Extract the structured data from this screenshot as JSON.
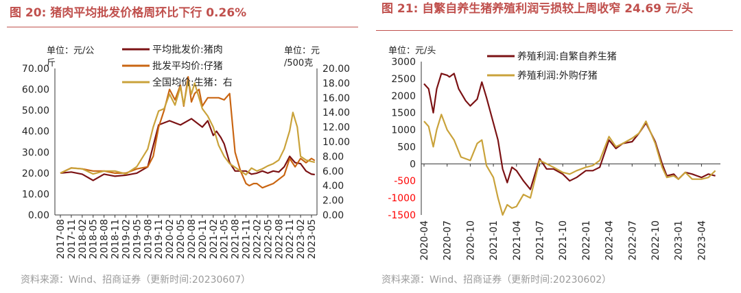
{
  "left_panel": {
    "title": "图 20: 猪肉平均批发价格周环比下行 0.26%",
    "source": "资料来源：Wind、招商证券（更新时间:20230607）"
  },
  "right_panel": {
    "title": "图 21: 自繁自养生猪养殖利润亏损较上周收窄 24.69 元/头",
    "source": "资料来源：Wind、招商证券（更新时间:20230602）"
  },
  "chart_data": [
    {
      "type": "line",
      "title": "图 20: 猪肉平均批发价格周环比下行 0.26%",
      "y_left_unit": "单位：元/公斤",
      "y_right_unit": "元/500克",
      "ylim_left": [
        0,
        70
      ],
      "ylim_right": [
        0,
        20
      ],
      "yticks_left": [
        "70.00",
        "60.00",
        "50.00",
        "40.00",
        "30.00",
        "20.00",
        "10.00",
        "0.00"
      ],
      "yticks_right": [
        "20.00",
        "18.00",
        "16.00",
        "14.00",
        "12.00",
        "10.00",
        "8.00",
        "6.00",
        "4.00",
        "2.00",
        "0.00"
      ],
      "x_tick_labels": [
        "2017-08",
        "2017-11",
        "2018-02",
        "2018-05",
        "2018-08",
        "2018-11",
        "2019-02",
        "2019-05",
        "2019-08",
        "2019-11",
        "2020-02",
        "2020-05",
        "2020-08",
        "2020-11",
        "2021-02",
        "2021-05",
        "2021-08",
        "2021-11",
        "2022-02",
        "2022-05",
        "2022-08",
        "2022-11",
        "2023-02",
        "2023-05"
      ],
      "legend_position": "top-center",
      "series": [
        {
          "name": "平均批发价:猪肉",
          "axis": "left",
          "color": "#7b1214",
          "x": [
            0,
            1,
            2,
            3,
            4,
            5,
            6,
            7,
            8,
            9,
            10,
            11,
            12,
            12.5,
            13,
            13.5,
            14,
            14.3,
            14.7,
            15,
            15.5,
            16,
            16.5,
            17,
            17.5,
            18,
            18.5,
            19,
            19.5,
            20,
            20.5,
            21,
            21.5,
            22,
            22.5,
            23,
            23.3
          ],
          "values": [
            20,
            20.5,
            19.5,
            16.5,
            19.5,
            18.5,
            19,
            20,
            23,
            43,
            45,
            43,
            46,
            44,
            42,
            45,
            38,
            40,
            37,
            34,
            25,
            21,
            21,
            21,
            19.5,
            20,
            21,
            20,
            21,
            20.5,
            23,
            28,
            25,
            24.5,
            21,
            19.5,
            19.3
          ]
        },
        {
          "name": "批发平均价:仔猪",
          "axis": "left",
          "color": "#c96512",
          "x": [
            0,
            1,
            2,
            3,
            4,
            5,
            6,
            7,
            8,
            8.5,
            9,
            9.5,
            10,
            10.5,
            11,
            11.3,
            11.7,
            12,
            12.3,
            12.7,
            13,
            13.5,
            14,
            14.5,
            15,
            15.5,
            16,
            16.5,
            17,
            17.3,
            17.7,
            18,
            18.5,
            19,
            19.5,
            20,
            20.5,
            21,
            21.5,
            22,
            22.5,
            23,
            23.3
          ],
          "values": [
            20,
            22.5,
            22,
            21,
            21,
            20,
            20,
            22,
            23,
            28,
            42,
            50,
            60,
            55,
            62,
            52,
            66,
            54,
            58,
            60,
            52,
            56,
            56,
            56,
            55,
            58,
            30,
            21,
            15,
            14,
            15,
            15,
            13,
            14,
            15,
            17,
            19,
            27,
            23,
            27,
            25,
            27,
            26
          ]
        },
        {
          "name": "全国均价:生猪：右",
          "axis": "right",
          "color": "#c9a23a",
          "x": [
            0,
            1,
            2,
            3,
            4,
            5,
            6,
            7,
            8,
            8.5,
            9,
            9.5,
            10,
            10.5,
            11,
            11.3,
            11.7,
            12,
            12.3,
            12.7,
            13,
            13.5,
            14,
            14.5,
            15,
            15.5,
            16,
            16.5,
            17,
            17.5,
            18,
            18.5,
            19,
            19.5,
            20,
            20.5,
            21,
            21.3,
            21.7,
            22,
            22.5,
            23,
            23.3
          ],
          "values": [
            5.7,
            6.4,
            6.3,
            5.6,
            6,
            6,
            5.6,
            6.6,
            9,
            12,
            14.2,
            14.5,
            16.5,
            15,
            17.5,
            15,
            18.3,
            16.5,
            18,
            16,
            14.5,
            13.5,
            12,
            9.5,
            8,
            7,
            6.5,
            6,
            5.5,
            6.4,
            6,
            6.3,
            6.7,
            7,
            7.5,
            9,
            11.5,
            14,
            12,
            8,
            7.5,
            7.3,
            7.2
          ]
        }
      ]
    },
    {
      "type": "line",
      "title": "图 21: 自繁自养生猪养殖利润亏损较上周收窄 24.69 元/头",
      "y_unit": "单位：元/头",
      "ylim": [
        -1500,
        3000
      ],
      "yticks": [
        "3000",
        "2500",
        "2000",
        "1500",
        "1000",
        "500",
        "0",
        "-500",
        "-1000",
        "-1500"
      ],
      "x_tick_labels": [
        "2020-04",
        "2020-07",
        "2020-10",
        "2021-01",
        "2021-04",
        "2021-07",
        "2021-10",
        "2022-01",
        "2022-04",
        "2022-07",
        "2022-10",
        "2023-01",
        "2023-04"
      ],
      "legend_position": "top-center",
      "series": [
        {
          "name": "养殖利润:自繁自养生猪",
          "color": "#7b1214",
          "x": [
            0,
            0.2,
            0.4,
            0.55,
            0.75,
            1,
            1.1,
            1.3,
            1.5,
            1.8,
            2,
            2.3,
            2.5,
            2.7,
            3,
            3.2,
            3.4,
            3.6,
            3.8,
            4,
            4.3,
            4.6,
            5,
            5.3,
            5.6,
            6,
            6.3,
            6.6,
            7,
            7.3,
            7.6,
            8,
            8.3,
            8.6,
            9,
            9.3,
            9.6,
            10,
            10.3,
            10.5,
            10.8,
            11,
            11.3,
            11.6,
            12,
            12.3,
            12.6
          ],
          "values": [
            2350,
            2200,
            1500,
            2200,
            2650,
            2600,
            2550,
            2650,
            2200,
            1850,
            1700,
            1900,
            2400,
            1950,
            1200,
            700,
            -150,
            -550,
            -100,
            -200,
            -500,
            -750,
            150,
            -150,
            -150,
            -300,
            -500,
            -400,
            -200,
            -200,
            -100,
            700,
            450,
            600,
            650,
            900,
            1200,
            650,
            0,
            -350,
            -300,
            -450,
            -250,
            -300,
            -400,
            -300,
            -350
          ]
        },
        {
          "name": "养殖利润:外购仔猪",
          "color": "#c9a23a",
          "x": [
            0,
            0.2,
            0.4,
            0.55,
            0.75,
            1,
            1.3,
            1.6,
            2,
            2.3,
            2.5,
            2.7,
            3,
            3.2,
            3.4,
            3.6,
            3.8,
            4,
            4.3,
            4.6,
            5,
            5.3,
            5.6,
            6,
            6.3,
            6.6,
            7,
            7.3,
            7.6,
            8,
            8.3,
            8.6,
            9,
            9.3,
            9.6,
            10,
            10.3,
            10.5,
            10.8,
            11,
            11.3,
            11.6,
            12,
            12.3,
            12.6
          ],
          "values": [
            1250,
            1100,
            500,
            1000,
            1450,
            1000,
            700,
            200,
            100,
            600,
            700,
            -50,
            -400,
            -1000,
            -1500,
            -1200,
            -1300,
            -1250,
            -900,
            -1000,
            100,
            0,
            -100,
            -250,
            -300,
            -200,
            -100,
            -50,
            100,
            800,
            500,
            600,
            750,
            900,
            1250,
            600,
            -100,
            -400,
            -350,
            -450,
            -250,
            -450,
            -450,
            -400,
            -200
          ]
        }
      ]
    }
  ]
}
